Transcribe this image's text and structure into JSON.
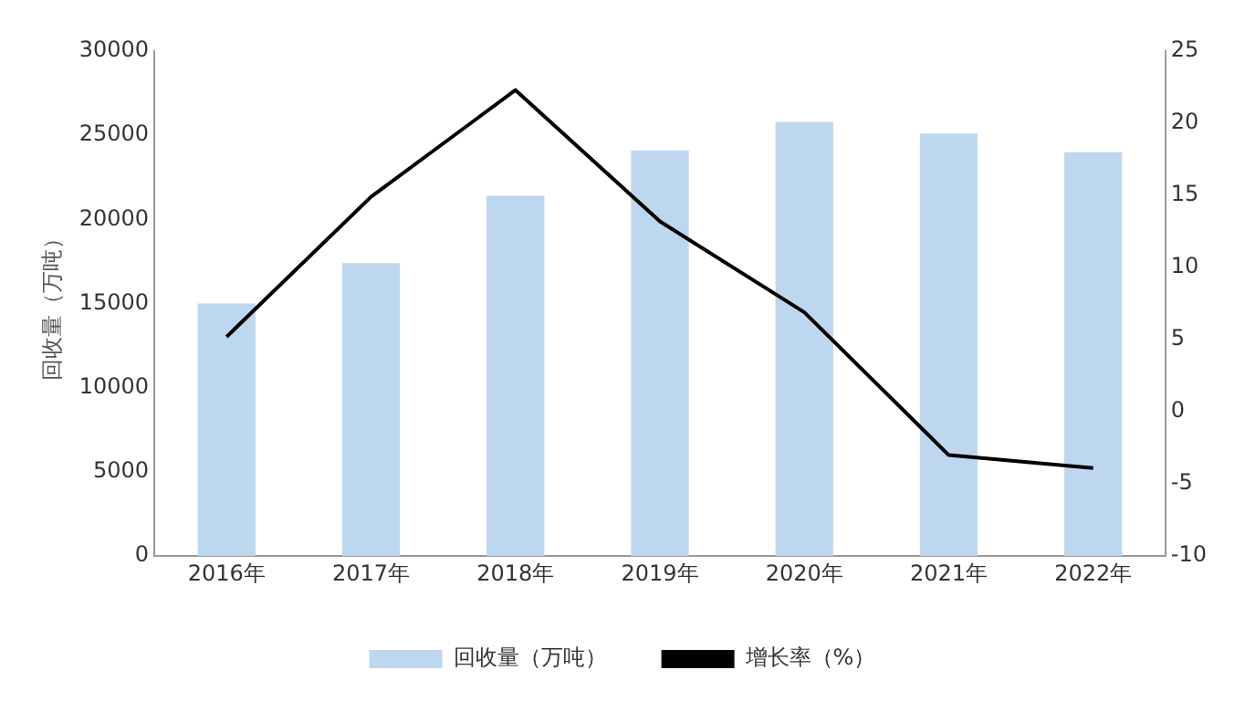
{
  "chart_data": {
    "type": "bar",
    "ylabel": "回收量（万吨）",
    "categories": [
      "2016年",
      "2017年",
      "2018年",
      "2019年",
      "2020年",
      "2021年",
      "2022年"
    ],
    "series": [
      {
        "name": "回收量（万吨）",
        "color": "#bdd7ee",
        "values": [
          15000,
          17400,
          21400,
          24100,
          25800,
          25100,
          24000
        ]
      },
      {
        "name": "增长率（%）",
        "type": "line",
        "axis": "y2",
        "color": "#000000",
        "values": [
          5.2,
          14.9,
          22.3,
          13.2,
          6.9,
          -3.0,
          -3.9
        ]
      }
    ],
    "ylim": [
      0,
      30000
    ],
    "yticks": [
      0,
      5000,
      10000,
      15000,
      20000,
      25000,
      30000
    ],
    "y2lim": [
      -10,
      25
    ],
    "y2ticks": [
      -10,
      -5,
      0,
      5,
      10,
      15,
      20,
      25
    ],
    "grid": false,
    "legend": "bottom",
    "marker": "none"
  }
}
